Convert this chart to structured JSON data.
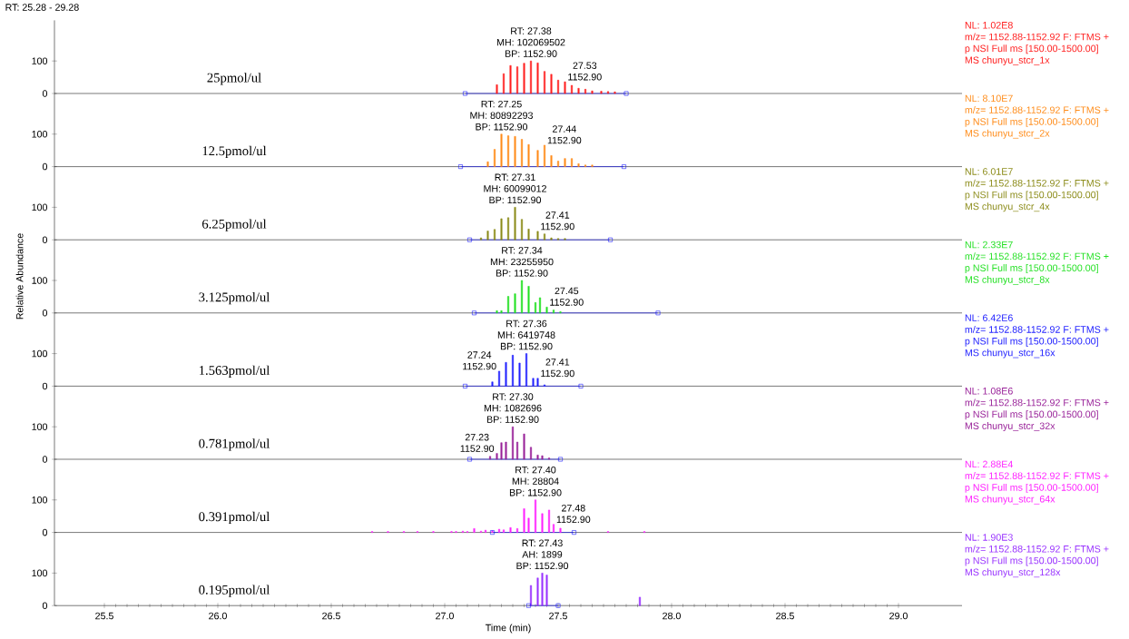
{
  "chart_data": [
    {
      "type": "bar",
      "title": "25pmol/ul",
      "subtitle": "RT: 25.28 - 29.28",
      "xlim": [
        25.28,
        29.28
      ],
      "ylim": [
        0,
        225
      ],
      "yticks": [
        0,
        100
      ],
      "tick_labels": "y",
      "series": [
        {
          "color": "#ff2020",
          "x": [
            27.23,
            27.26,
            27.29,
            27.32,
            27.35,
            27.38,
            27.41,
            27.44,
            27.47,
            27.5,
            27.53,
            27.56,
            27.59,
            27.62,
            27.65,
            27.69,
            27.72,
            27.75
          ],
          "values": [
            27,
            61,
            86,
            82,
            93,
            100,
            94,
            68,
            59,
            41,
            36,
            25,
            16,
            13,
            8,
            7,
            6,
            5
          ]
        },
        {
          "type": "line",
          "color": "#0000ff",
          "marker": "square",
          "x": [
            27.09,
            27.8
          ],
          "values": [
            0,
            0
          ]
        }
      ],
      "annotations": [
        "NL: 1.02E8",
        "m/z= 1152.88-1152.92 F: FTMS +",
        "p NSI Full ms [150.00-1500.00]",
        "MS chunyu_stcr_1x",
        {
          "text": "RT: 27.38",
          "x": 27.38,
          "y": 100
        },
        {
          "text": "MH: 102069502",
          "x": 27.38,
          "y": 100
        },
        {
          "text": "BP: 1152.90",
          "x": 27.38,
          "y": 100
        },
        {
          "text": "27.53",
          "x": 27.53,
          "y": 36
        },
        {
          "text": "1152.90",
          "x": 27.53,
          "y": 36
        }
      ]
    },
    {
      "type": "bar",
      "title": "12.5pmol/ul",
      "xlim": [
        25.28,
        29.28
      ],
      "ylim": [
        0,
        225
      ],
      "yticks": [
        0,
        100
      ],
      "tick_labels": "y",
      "series": [
        {
          "color": "#ff8c1a",
          "x": [
            27.19,
            27.22,
            27.25,
            27.28,
            27.31,
            27.34,
            27.37,
            27.41,
            27.44,
            27.47,
            27.5,
            27.53,
            27.56,
            27.59,
            27.62,
            27.65
          ],
          "values": [
            15,
            53,
            100,
            95,
            93,
            84,
            68,
            50,
            66,
            34,
            17,
            25,
            25,
            9,
            5,
            5
          ]
        },
        {
          "type": "line",
          "color": "#0000ff",
          "marker": "square",
          "x": [
            27.07,
            27.79
          ],
          "values": [
            0,
            0
          ]
        }
      ],
      "annotations": [
        "NL: 8.10E7",
        "m/z= 1152.88-1152.92 F: FTMS +",
        "p NSI Full ms [150.00-1500.00]",
        "MS chunyu_stcr_2x",
        {
          "text": "RT: 27.25",
          "x": 27.25,
          "y": 100
        },
        {
          "text": "MH: 80892293",
          "x": 27.25,
          "y": 100
        },
        {
          "text": "BP: 1152.90",
          "x": 27.25,
          "y": 100
        },
        {
          "text": "27.44",
          "x": 27.44,
          "y": 66
        },
        {
          "text": "1152.90",
          "x": 27.44,
          "y": 66
        }
      ]
    },
    {
      "type": "bar",
      "title": "6.25pmol/ul",
      "xlim": [
        25.28,
        29.28
      ],
      "ylim": [
        0,
        225
      ],
      "yticks": [
        0,
        100
      ],
      "tick_labels": "y",
      "series": [
        {
          "color": "#8c8c1a",
          "x": [
            27.16,
            27.19,
            27.22,
            27.25,
            27.28,
            27.31,
            27.34,
            27.37,
            27.41,
            27.44,
            27.47,
            27.5,
            27.53
          ],
          "values": [
            6,
            27,
            32,
            65,
            68,
            100,
            63,
            33,
            26,
            18,
            6,
            4,
            4
          ]
        },
        {
          "type": "line",
          "color": "#0000ff",
          "marker": "square",
          "x": [
            27.11,
            27.73
          ],
          "values": [
            0,
            0
          ]
        }
      ],
      "annotations": [
        "NL: 6.01E7",
        "m/z= 1152.88-1152.92 F: FTMS +",
        "p NSI Full ms [150.00-1500.00]",
        "MS chunyu_stcr_4x",
        {
          "text": "RT: 27.31",
          "x": 27.31,
          "y": 100
        },
        {
          "text": "MH: 60099012",
          "x": 27.31,
          "y": 100
        },
        {
          "text": "BP: 1152.90",
          "x": 27.31,
          "y": 100
        },
        {
          "text": "27.41",
          "x": 27.41,
          "y": 26
        },
        {
          "text": "1152.90",
          "x": 27.41,
          "y": 26
        }
      ]
    },
    {
      "type": "bar",
      "title": "3.125pmol/ul",
      "ylabel": "Relative Abundance",
      "xlim": [
        25.28,
        29.28
      ],
      "ylim": [
        0,
        225
      ],
      "yticks": [
        0,
        100
      ],
      "tick_labels": "y",
      "series": [
        {
          "color": "#22e022",
          "x": [
            27.23,
            27.25,
            27.28,
            27.31,
            27.34,
            27.37,
            27.4,
            27.42,
            27.45,
            27.48,
            27.51
          ],
          "values": [
            7,
            7,
            51,
            59,
            100,
            82,
            32,
            47,
            18,
            9,
            4
          ]
        },
        {
          "type": "line",
          "color": "#0000ff",
          "marker": "square",
          "x": [
            27.13,
            27.94
          ],
          "values": [
            0,
            0
          ]
        }
      ],
      "annotations": [
        "NL: 2.33E7",
        "m/z= 1152.88-1152.92 F: FTMS +",
        "p NSI Full ms [150.00-1500.00]",
        "MS chunyu_stcr_8x",
        {
          "text": "RT: 27.34",
          "x": 27.34,
          "y": 100
        },
        {
          "text": "MH: 23255950",
          "x": 27.34,
          "y": 100
        },
        {
          "text": "BP: 1152.90",
          "x": 27.34,
          "y": 100
        },
        {
          "text": "27.45",
          "x": 27.45,
          "y": 18
        },
        {
          "text": "1152.90",
          "x": 27.45,
          "y": 18
        }
      ]
    },
    {
      "type": "bar",
      "title": "1.563pmol/ul",
      "xlim": [
        25.28,
        29.28
      ],
      "ylim": [
        0,
        225
      ],
      "yticks": [
        0,
        100
      ],
      "tick_labels": "y",
      "series": [
        {
          "color": "#2222ff",
          "x": [
            27.21,
            27.24,
            27.27,
            27.3,
            27.33,
            27.36,
            27.39,
            27.41,
            27.44
          ],
          "values": [
            13,
            46,
            73,
            95,
            71,
            100,
            24,
            24,
            4
          ]
        },
        {
          "type": "line",
          "color": "#0000ff",
          "marker": "square",
          "x": [
            27.09,
            27.6
          ],
          "values": [
            0,
            0
          ]
        }
      ],
      "annotations": [
        "NL: 6.42E6",
        "m/z= 1152.88-1152.92 F: FTMS +",
        "p NSI Full ms [150.00-1500.00]",
        "MS chunyu_stcr_16x",
        {
          "text": "RT: 27.36",
          "x": 27.36,
          "y": 100
        },
        {
          "text": "MH: 6419748",
          "x": 27.36,
          "y": 100
        },
        {
          "text": "BP: 1152.90",
          "x": 27.36,
          "y": 100
        },
        {
          "text": "27.24",
          "x": 27.24,
          "y": 46
        },
        {
          "text": "1152.90",
          "x": 27.24,
          "y": 46
        },
        {
          "text": "27.41",
          "x": 27.41,
          "y": 24
        },
        {
          "text": "1152.90",
          "x": 27.41,
          "y": 24
        }
      ]
    },
    {
      "type": "bar",
      "title": "0.781pmol/ul",
      "xlim": [
        25.28,
        29.28
      ],
      "ylim": [
        0,
        225
      ],
      "yticks": [
        0,
        100
      ],
      "tick_labels": "y",
      "series": [
        {
          "color": "#992299",
          "x": [
            27.2,
            27.23,
            27.25,
            27.27,
            27.3,
            27.32,
            27.35,
            27.38,
            27.41,
            27.43,
            27.46
          ],
          "values": [
            9,
            18,
            51,
            53,
            100,
            53,
            78,
            37,
            13,
            11,
            4
          ]
        },
        {
          "type": "line",
          "color": "#0000ff",
          "marker": "square",
          "x": [
            27.11,
            27.51
          ],
          "values": [
            0,
            0
          ]
        }
      ],
      "annotations": [
        "NL: 1.08E6",
        "m/z= 1152.88-1152.92 F: FTMS +",
        "p NSI Full ms [150.00-1500.00]",
        "MS chunyu_stcr_32x",
        {
          "text": "RT: 27.30",
          "x": 27.3,
          "y": 100
        },
        {
          "text": "MH: 1082696",
          "x": 27.3,
          "y": 100
        },
        {
          "text": "BP: 1152.90",
          "x": 27.3,
          "y": 100
        },
        {
          "text": "27.23",
          "x": 27.23,
          "y": 18
        },
        {
          "text": "1152.90",
          "x": 27.23,
          "y": 18
        }
      ]
    },
    {
      "type": "bar",
      "title": "0.391pmol/ul",
      "xlim": [
        25.28,
        29.28
      ],
      "ylim": [
        0,
        225
      ],
      "yticks": [
        0,
        100
      ],
      "tick_labels": "y",
      "series": [
        {
          "color": "#ff22ff",
          "x": [
            26.68,
            26.75,
            26.82,
            26.88,
            26.95,
            27.03,
            27.05,
            27.08,
            27.1,
            27.13,
            27.16,
            27.18,
            27.21,
            27.24,
            27.26,
            27.29,
            27.32,
            27.35,
            27.37,
            27.4,
            27.43,
            27.46,
            27.48,
            27.51,
            27.72,
            27.88
          ],
          "values": [
            3,
            3,
            3,
            3,
            3,
            3,
            3,
            4,
            3,
            12,
            4,
            7,
            5,
            10,
            8,
            15,
            12,
            73,
            44,
            100,
            58,
            69,
            25,
            13,
            3,
            3
          ]
        },
        {
          "type": "line",
          "color": "#0000ff",
          "marker": "square",
          "x": [
            27.21,
            27.57
          ],
          "values": [
            0,
            0
          ]
        }
      ],
      "annotations": [
        "NL: 2.88E4",
        "m/z= 1152.88-1152.92 F: FTMS +",
        "p NSI Full ms [150.00-1500.00]",
        "MS chunyu_stcr_64x",
        {
          "text": "RT: 27.40",
          "x": 27.4,
          "y": 100
        },
        {
          "text": "MH: 28804",
          "x": 27.4,
          "y": 100
        },
        {
          "text": "BP: 1152.90",
          "x": 27.4,
          "y": 100
        },
        {
          "text": "27.48",
          "x": 27.48,
          "y": 25
        },
        {
          "text": "1152.90",
          "x": 27.48,
          "y": 25
        }
      ]
    },
    {
      "type": "bar",
      "title": "0.195pmol/ul",
      "xlabel": "Time (min)",
      "xlim": [
        25.28,
        29.28
      ],
      "ylim": [
        0,
        225
      ],
      "yticks": [
        0,
        100
      ],
      "xticks": [
        {
          "value": 25.5,
          "label": "25.5"
        },
        {
          "value": 26,
          "label": "26.0"
        },
        {
          "value": 26.5,
          "label": "26.5"
        },
        {
          "value": 27,
          "label": "27.0"
        },
        {
          "value": 27.5,
          "label": "27.5"
        },
        {
          "value": 28,
          "label": "28.0"
        },
        {
          "value": 28.5,
          "label": "28.5"
        },
        {
          "value": 29,
          "label": "29.0"
        }
      ],
      "series": [
        {
          "color": "#9933ff",
          "x": [
            27.38,
            27.41,
            27.43,
            27.45,
            27.86
          ],
          "values": [
            62,
            85,
            100,
            94,
            26
          ]
        },
        {
          "type": "line",
          "color": "#0000ff",
          "marker": "square",
          "x": [
            27.37,
            27.5
          ],
          "values": [
            0,
            0
          ]
        }
      ],
      "annotations": [
        "NL: 1.90E3",
        "m/z= 1152.88-1152.92 F: FTMS +",
        "p NSI Full ms [150.00-1500.00]",
        "MS chunyu_stcr_128x",
        {
          "text": "RT: 27.43",
          "x": 27.43,
          "y": 100
        },
        {
          "text": "AH: 1899",
          "x": 27.43,
          "y": 100
        },
        {
          "text": "BP: 1152.90",
          "x": 27.43,
          "y": 100
        }
      ]
    }
  ]
}
